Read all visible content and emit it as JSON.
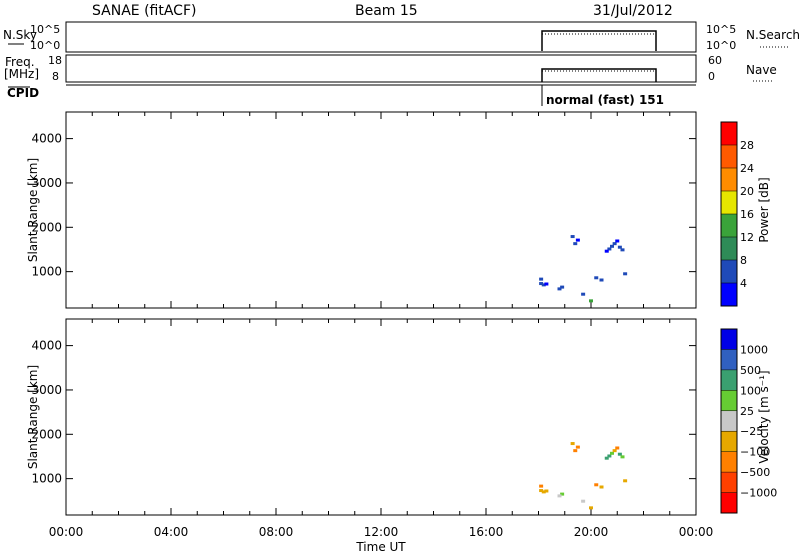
{
  "header": {
    "station": "SANAE (fitACF)",
    "beam": "Beam 15",
    "date": "31/Jul/2012"
  },
  "summary_panels": {
    "nsky_label": "N.Sky",
    "nsky_ticks": [
      "10^5",
      "10^0"
    ],
    "nsearch_label": "N.Search",
    "nsearch_ticks": [
      "10^5",
      "10^0"
    ],
    "freq_label_1": "Freq.",
    "freq_label_2": "[MHz]",
    "freq_ticks": [
      "18",
      "8"
    ],
    "nave_label": "Nave",
    "nave_ticks": [
      "60",
      "0"
    ],
    "cpid_label": "CPID",
    "cpid_text": "normal (fast) 151"
  },
  "colors": {
    "power": [
      "#0000ff",
      "#1f4ab8",
      "#2e8b57",
      "#3aa33a",
      "#e6e600",
      "#ff8c00",
      "#ff5a00",
      "#ff0000"
    ],
    "velocity": [
      "#0000e6",
      "#3060c0",
      "#3aa070",
      "#66cc33",
      "#c8c8c8",
      "#e6a800",
      "#ff8000",
      "#ff4000",
      "#ff0000"
    ]
  },
  "chart_data": [
    {
      "type": "scatter",
      "title": "",
      "xlabel": "Time UT",
      "ylabel": "Slant Range [km]",
      "xlim": [
        0,
        24
      ],
      "ylim": [
        180,
        4600
      ],
      "x_ticks": [
        "00:00",
        "04:00",
        "08:00",
        "12:00",
        "16:00",
        "20:00",
        "00:00"
      ],
      "y_ticks": [
        "1000",
        "2000",
        "3000",
        "4000"
      ],
      "colorbar_label": "Power [dB]",
      "colorbar_ticks": [
        "4",
        "8",
        "12",
        "16",
        "20",
        "24",
        "28"
      ],
      "points": [
        {
          "x": 18.1,
          "y": 720,
          "c": 1
        },
        {
          "x": 18.2,
          "y": 690,
          "c": 1
        },
        {
          "x": 18.3,
          "y": 710,
          "c": 0
        },
        {
          "x": 18.1,
          "y": 820,
          "c": 1
        },
        {
          "x": 18.9,
          "y": 640,
          "c": 1
        },
        {
          "x": 18.8,
          "y": 600,
          "c": 1
        },
        {
          "x": 19.4,
          "y": 1620,
          "c": 1
        },
        {
          "x": 19.5,
          "y": 1700,
          "c": 0
        },
        {
          "x": 19.3,
          "y": 1780,
          "c": 1
        },
        {
          "x": 20.7,
          "y": 1500,
          "c": 1
        },
        {
          "x": 20.8,
          "y": 1560,
          "c": 1
        },
        {
          "x": 20.9,
          "y": 1620,
          "c": 1
        },
        {
          "x": 21.0,
          "y": 1680,
          "c": 0
        },
        {
          "x": 21.1,
          "y": 1540,
          "c": 1
        },
        {
          "x": 21.2,
          "y": 1480,
          "c": 1
        },
        {
          "x": 20.6,
          "y": 1450,
          "c": 0
        },
        {
          "x": 20.2,
          "y": 850,
          "c": 1
        },
        {
          "x": 20.4,
          "y": 800,
          "c": 1
        },
        {
          "x": 21.3,
          "y": 940,
          "c": 1
        },
        {
          "x": 19.7,
          "y": 480,
          "c": 1
        },
        {
          "x": 20.0,
          "y": 330,
          "c": 3
        }
      ]
    },
    {
      "type": "scatter",
      "title": "",
      "xlabel": "Time UT",
      "ylabel": "Slant Range [km]",
      "xlim": [
        0,
        24
      ],
      "ylim": [
        180,
        4600
      ],
      "x_ticks": [
        "00:00",
        "04:00",
        "08:00",
        "12:00",
        "16:00",
        "20:00",
        "00:00"
      ],
      "y_ticks": [
        "1000",
        "2000",
        "3000",
        "4000"
      ],
      "colorbar_label": "Velocity [m s⁻¹]",
      "colorbar_ticks": [
        "1000",
        "500",
        "100",
        "25",
        "−25",
        "−100",
        "−500",
        "−1000"
      ],
      "points": [
        {
          "x": 18.1,
          "y": 720,
          "c": 5
        },
        {
          "x": 18.2,
          "y": 690,
          "c": 5
        },
        {
          "x": 18.3,
          "y": 710,
          "c": 5
        },
        {
          "x": 18.1,
          "y": 820,
          "c": 6
        },
        {
          "x": 18.9,
          "y": 640,
          "c": 3
        },
        {
          "x": 18.8,
          "y": 600,
          "c": 4
        },
        {
          "x": 19.4,
          "y": 1620,
          "c": 6
        },
        {
          "x": 19.5,
          "y": 1700,
          "c": 6
        },
        {
          "x": 19.3,
          "y": 1780,
          "c": 5
        },
        {
          "x": 20.7,
          "y": 1500,
          "c": 2
        },
        {
          "x": 20.8,
          "y": 1560,
          "c": 3
        },
        {
          "x": 20.9,
          "y": 1620,
          "c": 5
        },
        {
          "x": 21.0,
          "y": 1680,
          "c": 6
        },
        {
          "x": 21.1,
          "y": 1540,
          "c": 2
        },
        {
          "x": 21.2,
          "y": 1480,
          "c": 3
        },
        {
          "x": 20.6,
          "y": 1450,
          "c": 2
        },
        {
          "x": 20.2,
          "y": 850,
          "c": 6
        },
        {
          "x": 20.4,
          "y": 800,
          "c": 5
        },
        {
          "x": 21.3,
          "y": 940,
          "c": 5
        },
        {
          "x": 19.7,
          "y": 480,
          "c": 4
        },
        {
          "x": 20.0,
          "y": 330,
          "c": 5
        }
      ]
    }
  ]
}
